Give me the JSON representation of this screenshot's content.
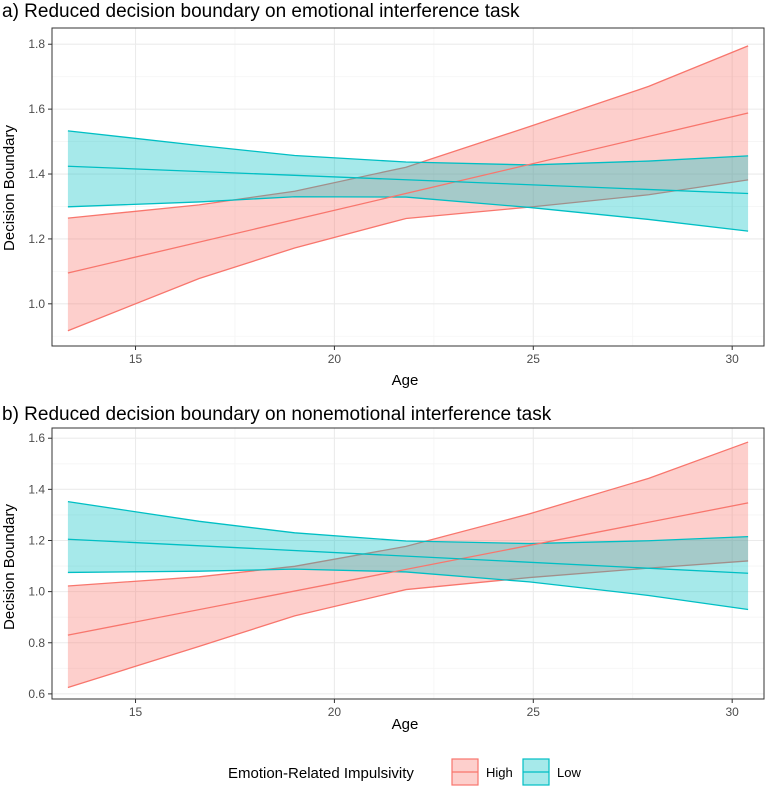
{
  "colors": {
    "high": "#F8766D",
    "low": "#00BFC4",
    "panel_border": "#333333",
    "grid_major": "#ebebeb",
    "grid_minor": "#f5f5f5",
    "tick_text": "#4d4d4d"
  },
  "legend": {
    "title": "Emotion-Related Impulsivity",
    "items": [
      {
        "key": "high",
        "label": "High"
      },
      {
        "key": "low",
        "label": "Low"
      }
    ]
  },
  "chart_data": [
    {
      "type": "line",
      "title": "a) Reduced decision boundary on emotional interference task",
      "xlabel": "Age",
      "ylabel": "Decision Boundary",
      "xlim": [
        12.9,
        30.8
      ],
      "ylim": [
        0.87,
        1.85
      ],
      "xticks": [
        15,
        20,
        25,
        30
      ],
      "yticks": [
        1.0,
        1.2,
        1.4,
        1.6,
        1.8
      ],
      "ytick_labels": [
        "1.0",
        "1.2",
        "1.4",
        "1.6",
        "1.8"
      ],
      "series": [
        {
          "name": "High",
          "key": "high",
          "fit": [
            [
              13.3,
              1.095
            ],
            [
              30.4,
              1.588
            ]
          ],
          "lower": [
            [
              13.3,
              0.917
            ],
            [
              16.6,
              1.078
            ],
            [
              19.0,
              1.172
            ],
            [
              21.8,
              1.263
            ],
            [
              24.9,
              1.298
            ],
            [
              27.9,
              1.336
            ],
            [
              30.4,
              1.382
            ]
          ],
          "upper": [
            [
              13.3,
              1.264
            ],
            [
              16.6,
              1.305
            ],
            [
              19.0,
              1.347
            ],
            [
              21.8,
              1.421
            ],
            [
              24.9,
              1.546
            ],
            [
              27.9,
              1.67
            ],
            [
              30.4,
              1.795
            ]
          ]
        },
        {
          "name": "Low",
          "key": "low",
          "fit": [
            [
              13.3,
              1.424
            ],
            [
              30.4,
              1.34
            ]
          ],
          "lower": [
            [
              13.3,
              1.299
            ],
            [
              16.6,
              1.314
            ],
            [
              19.0,
              1.33
            ],
            [
              21.8,
              1.329
            ],
            [
              24.9,
              1.297
            ],
            [
              27.9,
              1.26
            ],
            [
              30.4,
              1.224
            ]
          ],
          "upper": [
            [
              13.3,
              1.533
            ],
            [
              16.6,
              1.488
            ],
            [
              19.0,
              1.457
            ],
            [
              21.8,
              1.437
            ],
            [
              24.9,
              1.428
            ],
            [
              27.9,
              1.44
            ],
            [
              30.4,
              1.456
            ]
          ]
        }
      ]
    },
    {
      "type": "line",
      "title": "b) Reduced decision boundary on nonemotional interference task",
      "xlabel": "Age",
      "ylabel": "Decision Boundary",
      "xlim": [
        12.9,
        30.8
      ],
      "ylim": [
        0.58,
        1.64
      ],
      "xticks": [
        15,
        20,
        25,
        30
      ],
      "yticks": [
        0.6,
        0.8,
        1.0,
        1.2,
        1.4,
        1.6
      ],
      "ytick_labels": [
        "0.6",
        "0.8",
        "1.0",
        "1.2",
        "1.4",
        "1.6"
      ],
      "series": [
        {
          "name": "High",
          "key": "high",
          "fit": [
            [
              13.3,
              0.83
            ],
            [
              30.4,
              1.347
            ]
          ],
          "lower": [
            [
              13.3,
              0.625
            ],
            [
              16.6,
              0.786
            ],
            [
              19.0,
              0.905
            ],
            [
              21.8,
              1.008
            ],
            [
              24.9,
              1.055
            ],
            [
              27.9,
              1.092
            ],
            [
              30.4,
              1.12
            ]
          ],
          "upper": [
            [
              13.3,
              1.022
            ],
            [
              16.6,
              1.058
            ],
            [
              19.0,
              1.099
            ],
            [
              21.8,
              1.177
            ],
            [
              24.9,
              1.304
            ],
            [
              27.9,
              1.443
            ],
            [
              30.4,
              1.585
            ]
          ]
        },
        {
          "name": "Low",
          "key": "low",
          "fit": [
            [
              13.3,
              1.205
            ],
            [
              30.4,
              1.072
            ]
          ],
          "lower": [
            [
              13.3,
              1.075
            ],
            [
              16.6,
              1.08
            ],
            [
              19.0,
              1.088
            ],
            [
              21.8,
              1.077
            ],
            [
              24.9,
              1.038
            ],
            [
              27.9,
              0.985
            ],
            [
              30.4,
              0.93
            ]
          ],
          "upper": [
            [
              13.3,
              1.352
            ],
            [
              16.6,
              1.275
            ],
            [
              19.0,
              1.23
            ],
            [
              21.8,
              1.198
            ],
            [
              24.9,
              1.188
            ],
            [
              27.9,
              1.199
            ],
            [
              30.4,
              1.215
            ]
          ]
        }
      ]
    }
  ]
}
